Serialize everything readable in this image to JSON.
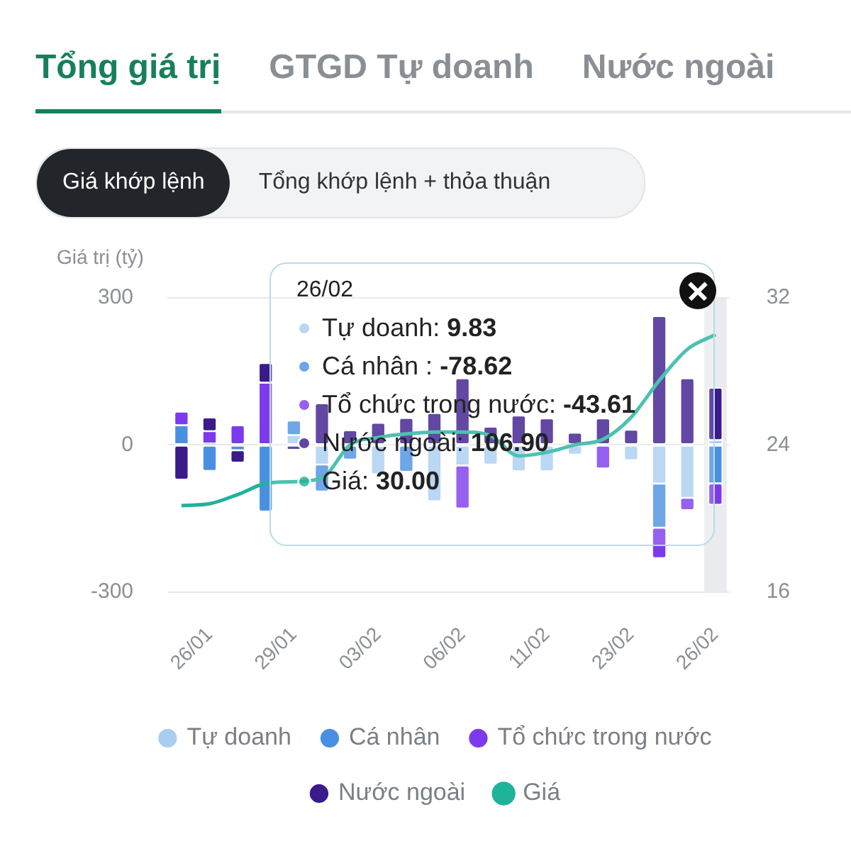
{
  "chart_data": {
    "type": "bar",
    "title": "Tổng giá trị",
    "ylabel": "Giá trị (tỷ)",
    "annotations": [
      "GTGD Tự doanh",
      "Nước ngoài",
      "Giá khớp lệnh",
      "Tổng khớp lệnh + thỏa thuận",
      "26/02",
      "Tự doanh: 9.83",
      "Cá nhân : -78.62",
      "Tổ chức trong nước: -43.61",
      "Nước ngoài: 106.90",
      "Giá: 30.00"
    ],
    "categories": [
      null,
      "26/01",
      null,
      null,
      "29/01",
      null,
      null,
      "03/02",
      null,
      null,
      "06/02",
      null,
      null,
      "11/02",
      null,
      null,
      "23/02",
      null,
      null,
      "26/02"
    ],
    "stacked": true,
    "series": [
      {
        "name": "Tự doanh",
        "color": "#a9cdf1",
        "values": [
          0,
          3,
          0,
          0,
          20,
          -40,
          0,
          -60,
          0,
          -115,
          -42,
          -40,
          -54,
          -54,
          -20,
          0,
          -31,
          -79,
          -108,
          9.83
        ]
      },
      {
        "name": "Cá nhân",
        "color": "#4a90e2",
        "values": [
          40,
          -53,
          -11,
          -136,
          30,
          -55,
          -30,
          0,
          -55,
          0,
          0,
          0,
          0,
          0,
          0,
          0,
          0,
          -90,
          0,
          -78.62
        ]
      },
      {
        "name": "Tổ chức trong nước",
        "color": "#7c3aed",
        "values": [
          28,
          25,
          40,
          127,
          0,
          0,
          0,
          0,
          0,
          0,
          -88,
          0,
          0,
          0,
          0,
          -48,
          0,
          -62,
          -25,
          -43.61
        ]
      },
      {
        "name": "Nước ngoài",
        "color": "#3b1a8c",
        "values": [
          -71,
          28,
          -25,
          40,
          -10,
          85,
          30,
          45,
          55,
          65,
          136,
          37,
          60,
          54,
          25,
          54,
          31,
          263,
          136,
          106.9
        ]
      },
      {
        "name": "Giá",
        "type": "line",
        "axis": "y2",
        "color": "#1fb39b",
        "values": [
          20.7,
          20.8,
          21.3,
          21.9,
          22.0,
          22.2,
          24.0,
          24.4,
          24.6,
          24.7,
          24.7,
          24.5,
          23.4,
          23.6,
          24.0,
          24.3,
          25.5,
          27.5,
          29.2,
          30.0
        ]
      }
    ],
    "ylim": [
      -300,
      300
    ],
    "yticks": [
      -300,
      0,
      300
    ],
    "y2lim": [
      16,
      32
    ],
    "y2ticks": [
      16,
      24,
      32
    ],
    "bands": [
      {
        "axis": "x",
        "from": "26/02",
        "to": "26/02",
        "color": "#e9ebee"
      }
    ],
    "grid": "y",
    "legend": "bottom",
    "marker": "none"
  }
}
